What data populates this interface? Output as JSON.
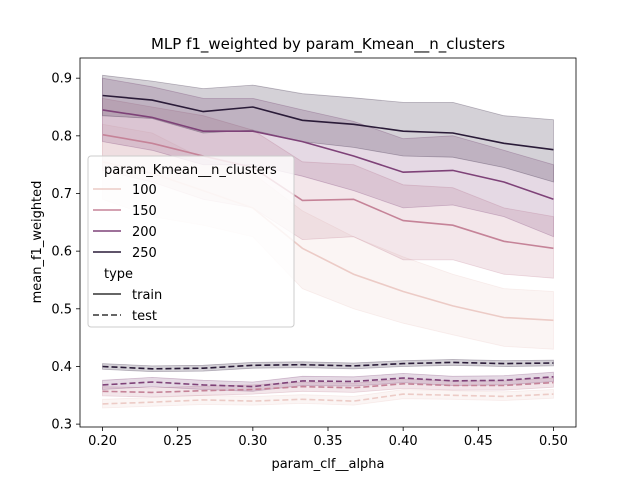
{
  "chart_data": {
    "type": "line",
    "title": "MLP f1_weighted by param_Kmean__n_clusters",
    "xlabel": "param_clf__alpha",
    "ylabel": "mean_f1_weighted",
    "xlim": [
      0.185,
      0.515
    ],
    "ylim": [
      0.295,
      0.935
    ],
    "xticks": [
      0.2,
      0.25,
      0.3,
      0.35,
      0.4,
      0.45,
      0.5
    ],
    "xtick_labels": [
      "0.20",
      "0.25",
      "0.30",
      "0.35",
      "0.40",
      "0.45",
      "0.50"
    ],
    "yticks": [
      0.3,
      0.4,
      0.5,
      0.6,
      0.7,
      0.8,
      0.9
    ],
    "ytick_labels": [
      "0.3",
      "0.4",
      "0.5",
      "0.6",
      "0.7",
      "0.8",
      "0.9"
    ],
    "grid": false,
    "legend_placement": "center-left",
    "x": [
      0.2,
      0.233,
      0.267,
      0.3,
      0.333,
      0.367,
      0.4,
      0.433,
      0.467,
      0.5
    ],
    "legend": {
      "hue_title": "param_Kmean__n_clusters",
      "hue_entries": [
        {
          "label": "100",
          "color": "#eccbc6"
        },
        {
          "label": "150",
          "color": "#c58398"
        },
        {
          "label": "200",
          "color": "#7e4278"
        },
        {
          "label": "250",
          "color": "#2a1b38"
        }
      ],
      "style_title": "type",
      "style_entries": [
        {
          "label": "train",
          "dash": "solid"
        },
        {
          "label": "test",
          "dash": "dashed"
        }
      ]
    },
    "series": [
      {
        "name": "100",
        "type": "train",
        "color": "#eccbc6",
        "values": [
          0.755,
          0.735,
          0.705,
          0.675,
          0.605,
          0.56,
          0.53,
          0.505,
          0.485,
          0.48
        ],
        "lower": [
          0.69,
          0.66,
          0.645,
          0.625,
          0.535,
          0.5,
          0.475,
          0.455,
          0.435,
          0.43
        ],
        "upper": [
          0.82,
          0.805,
          0.76,
          0.735,
          0.67,
          0.625,
          0.59,
          0.56,
          0.535,
          0.53
        ]
      },
      {
        "name": "150",
        "type": "train",
        "color": "#c58398",
        "values": [
          0.802,
          0.787,
          0.765,
          0.745,
          0.688,
          0.69,
          0.653,
          0.645,
          0.617,
          0.605
        ],
        "lower": [
          0.74,
          0.72,
          0.69,
          0.675,
          0.62,
          0.625,
          0.585,
          0.585,
          0.56,
          0.553
        ],
        "upper": [
          0.865,
          0.85,
          0.835,
          0.81,
          0.755,
          0.75,
          0.715,
          0.71,
          0.675,
          0.66
        ]
      },
      {
        "name": "200",
        "type": "train",
        "color": "#7e4278",
        "values": [
          0.845,
          0.832,
          0.808,
          0.808,
          0.79,
          0.765,
          0.737,
          0.74,
          0.72,
          0.69
        ],
        "lower": [
          0.79,
          0.775,
          0.75,
          0.75,
          0.73,
          0.705,
          0.675,
          0.68,
          0.66,
          0.625
        ],
        "upper": [
          0.9,
          0.885,
          0.865,
          0.865,
          0.845,
          0.825,
          0.795,
          0.8,
          0.775,
          0.75
        ]
      },
      {
        "name": "250",
        "type": "train",
        "color": "#2a1b38",
        "values": [
          0.87,
          0.862,
          0.842,
          0.85,
          0.827,
          0.82,
          0.808,
          0.805,
          0.787,
          0.776
        ],
        "lower": [
          0.835,
          0.83,
          0.805,
          0.81,
          0.79,
          0.78,
          0.765,
          0.763,
          0.745,
          0.72
        ],
        "upper": [
          0.905,
          0.895,
          0.882,
          0.888,
          0.873,
          0.866,
          0.858,
          0.858,
          0.835,
          0.828
        ]
      },
      {
        "name": "100",
        "type": "test",
        "color": "#eccbc6",
        "values": [
          0.335,
          0.338,
          0.342,
          0.34,
          0.343,
          0.34,
          0.352,
          0.35,
          0.348,
          0.352
        ],
        "lower": [
          0.328,
          0.331,
          0.334,
          0.333,
          0.336,
          0.333,
          0.344,
          0.343,
          0.341,
          0.345
        ],
        "upper": [
          0.343,
          0.346,
          0.35,
          0.348,
          0.351,
          0.348,
          0.36,
          0.358,
          0.356,
          0.36
        ]
      },
      {
        "name": "150",
        "type": "test",
        "color": "#c58398",
        "values": [
          0.357,
          0.355,
          0.358,
          0.36,
          0.365,
          0.363,
          0.37,
          0.367,
          0.367,
          0.372
        ],
        "lower": [
          0.349,
          0.347,
          0.35,
          0.352,
          0.357,
          0.355,
          0.362,
          0.359,
          0.359,
          0.364
        ],
        "upper": [
          0.365,
          0.363,
          0.366,
          0.368,
          0.373,
          0.371,
          0.378,
          0.375,
          0.375,
          0.38
        ]
      },
      {
        "name": "200",
        "type": "test",
        "color": "#7e4278",
        "values": [
          0.368,
          0.373,
          0.368,
          0.365,
          0.375,
          0.374,
          0.38,
          0.375,
          0.376,
          0.382
        ],
        "lower": [
          0.36,
          0.365,
          0.36,
          0.357,
          0.367,
          0.366,
          0.372,
          0.367,
          0.368,
          0.374
        ],
        "upper": [
          0.376,
          0.381,
          0.376,
          0.373,
          0.383,
          0.382,
          0.388,
          0.383,
          0.384,
          0.39
        ]
      },
      {
        "name": "250",
        "type": "test",
        "color": "#2a1b38",
        "values": [
          0.4,
          0.396,
          0.397,
          0.402,
          0.403,
          0.401,
          0.405,
          0.407,
          0.405,
          0.406
        ],
        "lower": [
          0.395,
          0.391,
          0.392,
          0.397,
          0.398,
          0.396,
          0.4,
          0.402,
          0.4,
          0.401
        ],
        "upper": [
          0.405,
          0.401,
          0.402,
          0.407,
          0.408,
          0.406,
          0.41,
          0.412,
          0.41,
          0.411
        ]
      }
    ]
  }
}
